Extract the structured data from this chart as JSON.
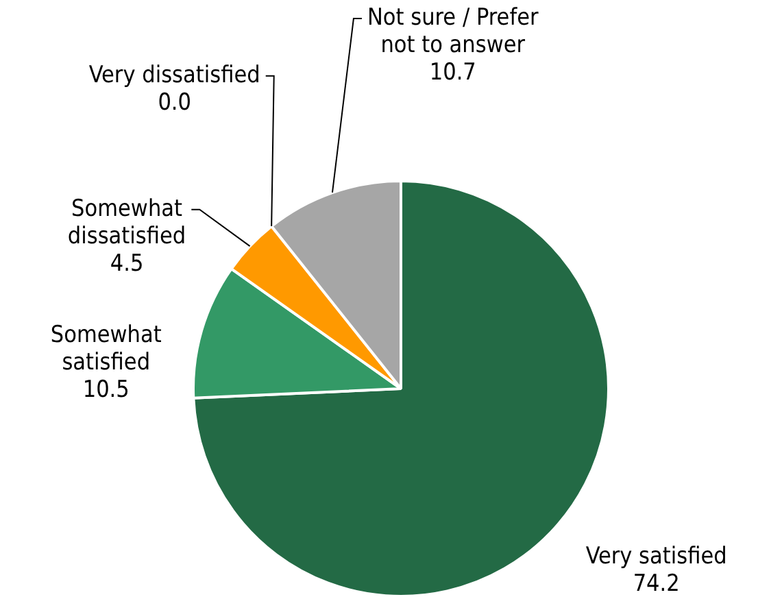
{
  "chart_data": {
    "type": "pie",
    "categories": [
      "Very satisfied",
      "Somewhat satisfied",
      "Somewhat dissatisfied",
      "Very dissatisfied",
      "Not sure / Prefer not to answer"
    ],
    "values": [
      74.2,
      10.5,
      4.5,
      0.0,
      10.7
    ],
    "value_labels": [
      "74.2",
      "10.5",
      "4.5",
      "0.0",
      "10.7"
    ],
    "colors": [
      "#236a45",
      "#339966",
      "#ff9900",
      "#c00000",
      "#a6a6a6"
    ],
    "legend": false
  }
}
